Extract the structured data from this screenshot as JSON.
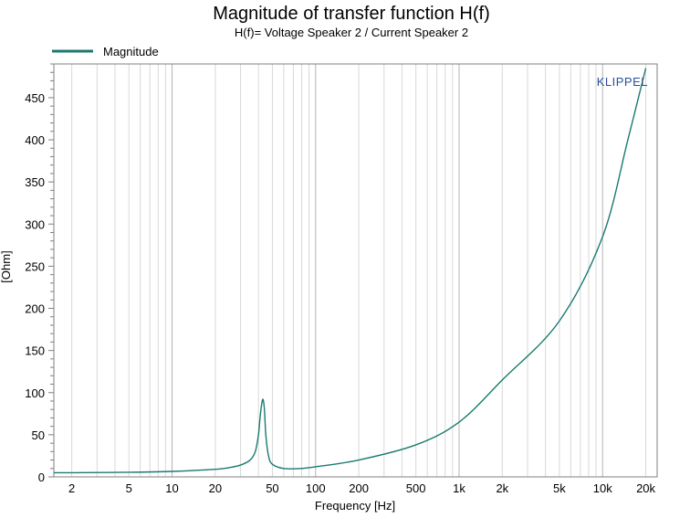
{
  "chart_data": {
    "type": "line",
    "title": "Magnitude of transfer function H(f)",
    "subtitle": "H(f)= Voltage Speaker 2 / Current Speaker 2",
    "xlabel": "Frequency [Hz]",
    "ylabel": "[Ohm]",
    "xscale": "log",
    "xlim": [
      1.5,
      24000
    ],
    "ylim": [
      0,
      490
    ],
    "x_ticks": [
      2,
      5,
      10,
      20,
      50,
      100,
      200,
      500,
      1000,
      2000,
      5000,
      10000,
      20000
    ],
    "x_tick_labels": [
      "2",
      "5",
      "10",
      "20",
      "50",
      "100",
      "200",
      "500",
      "1k",
      "2k",
      "5k",
      "10k",
      "20k"
    ],
    "y_ticks": [
      0,
      50,
      100,
      150,
      200,
      250,
      300,
      350,
      400,
      450
    ],
    "y_tick_labels": [
      "0",
      "50",
      "100",
      "150",
      "200",
      "250",
      "300",
      "350",
      "400",
      "450"
    ],
    "grid": true,
    "legend": {
      "position": "top-left",
      "entries": [
        "Magnitude"
      ]
    },
    "annotation": "KLIPPEL",
    "series": [
      {
        "name": "Magnitude",
        "color": "#1a7a70",
        "x": [
          1.5,
          2,
          5,
          10,
          20,
          25,
          30,
          35,
          38,
          40,
          41,
          42,
          43,
          44,
          45,
          47,
          50,
          60,
          80,
          100,
          200,
          500,
          1000,
          2000,
          5000,
          10000,
          15000,
          20000
        ],
        "y": [
          5,
          5,
          5.5,
          6.5,
          9,
          11,
          14,
          20,
          30,
          50,
          70,
          85,
          92,
          80,
          50,
          25,
          15,
          10,
          10,
          12,
          20,
          38,
          65,
          115,
          185,
          285,
          400,
          485
        ]
      }
    ]
  }
}
